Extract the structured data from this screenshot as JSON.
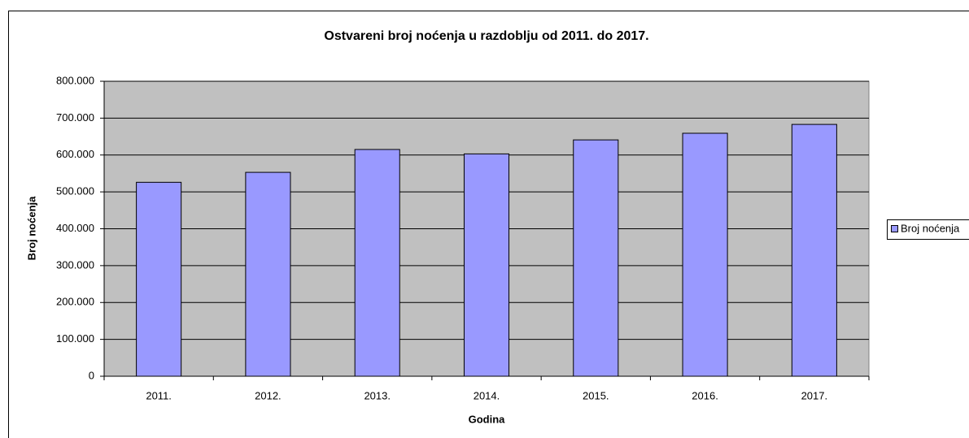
{
  "chart_data": {
    "type": "bar",
    "title": "Ostvareni broj noćenja u razdoblju od 2011. do 2017.",
    "x_label": "Godina",
    "y_label": "Broj noćenja",
    "categories": [
      "2011.",
      "2012.",
      "2013.",
      "2014.",
      "2015.",
      "2016.",
      "2017."
    ],
    "series": [
      {
        "name": "Broj noćenja",
        "color": "#9999ff",
        "values": [
          526000,
          553000,
          615000,
          603000,
          641000,
          659000,
          683000
        ]
      }
    ],
    "ylim": [
      0,
      800000
    ],
    "yticks": [
      0,
      {
        "value": 100000,
        "label": "100.000"
      },
      {
        "value": 200000,
        "label": "200.000"
      },
      {
        "value": 300000,
        "label": "300.000"
      },
      {
        "value": 400000,
        "label": "400.000"
      },
      {
        "value": 500000,
        "label": "500.000"
      },
      {
        "value": 600000,
        "label": "600.000"
      },
      {
        "value": 700000,
        "label": "700.000"
      },
      {
        "value": 800000,
        "label": "800.000"
      }
    ],
    "grid": true,
    "legend": "right"
  }
}
